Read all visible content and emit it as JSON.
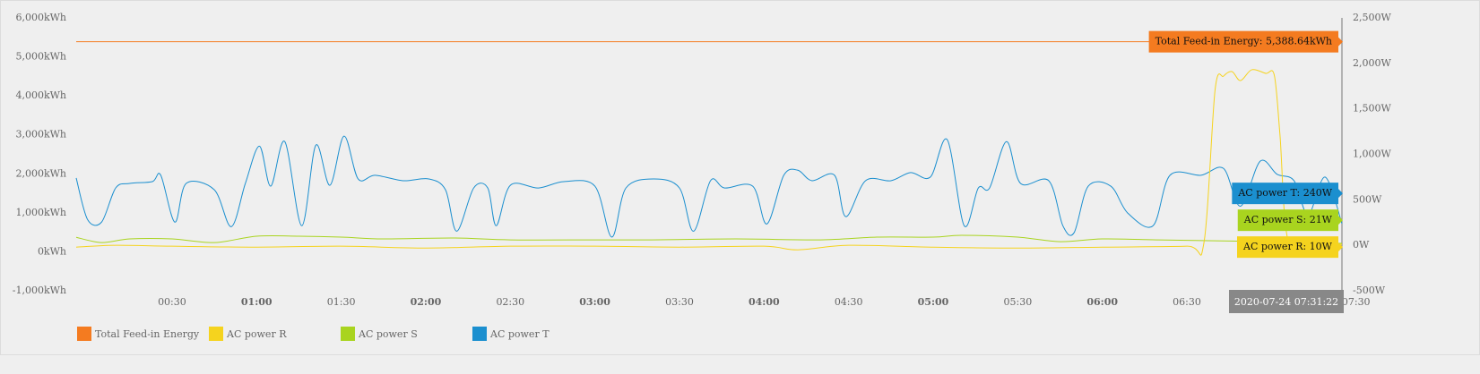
{
  "chart_data": {
    "type": "line",
    "xlim": [
      -4,
      445
    ],
    "xticks": [
      {
        "value": 30,
        "label": "00:30"
      },
      {
        "value": 60,
        "label": "01:00"
      },
      {
        "value": 90,
        "label": "01:30"
      },
      {
        "value": 120,
        "label": "02:00"
      },
      {
        "value": 150,
        "label": "02:30"
      },
      {
        "value": 180,
        "label": "03:00"
      },
      {
        "value": 210,
        "label": "03:30"
      },
      {
        "value": 240,
        "label": "04:00"
      },
      {
        "value": 270,
        "label": "04:30"
      },
      {
        "value": 300,
        "label": "05:00"
      },
      {
        "value": 330,
        "label": "05:30"
      },
      {
        "value": 360,
        "label": "06:00"
      },
      {
        "value": 390,
        "label": "06:30"
      },
      {
        "value": 450,
        "label": "07:30"
      }
    ],
    "ylim": [
      -1000,
      6000
    ],
    "yticks": [
      {
        "value": -1000,
        "label": "-1,000kWh"
      },
      {
        "value": 0,
        "label": "0kWh"
      },
      {
        "value": 1000,
        "label": "1,000kWh"
      },
      {
        "value": 2000,
        "label": "2,000kWh"
      },
      {
        "value": 3000,
        "label": "3,000kWh"
      },
      {
        "value": 4000,
        "label": "4,000kWh"
      },
      {
        "value": 5000,
        "label": "5,000kWh"
      },
      {
        "value": 6000,
        "label": "6,000kWh"
      }
    ],
    "y2lim": [
      -500,
      2500
    ],
    "y2ticks": [
      {
        "value": -500,
        "label": "-500W"
      },
      {
        "value": 0,
        "label": "0W"
      },
      {
        "value": 500,
        "label": "500W"
      },
      {
        "value": 1000,
        "label": "1,000W"
      },
      {
        "value": 1500,
        "label": "1,500W"
      },
      {
        "value": 2000,
        "label": "2,000W"
      },
      {
        "value": 2500,
        "label": "2,500W"
      }
    ],
    "cursor": {
      "x": 445,
      "label": "2020-07-24 07:31:22"
    },
    "series": [
      {
        "name": "Total Feed-in Energy",
        "color": "#f47b20",
        "x": [
          -4,
          445
        ],
        "values": [
          5388.64,
          5388.64
        ],
        "value_labels": [
          null,
          "Total Feed-in Energy: 5,388.64kWh"
        ]
      },
      {
        "name": "AC power R",
        "color": "#f5d31e",
        "axis": "y2",
        "x": [
          -4,
          10,
          30,
          60,
          90,
          120,
          150,
          180,
          210,
          240,
          252,
          270,
          300,
          330,
          360,
          390,
          396,
          400,
          403,
          406,
          409,
          413,
          418,
          421,
          423,
          426,
          435,
          445
        ],
        "values": [
          -20,
          0,
          -10,
          -20,
          -10,
          -30,
          -10,
          -10,
          -20,
          -10,
          -50,
          0,
          -20,
          -30,
          -20,
          -10,
          20,
          1710,
          1860,
          1910,
          1810,
          1930,
          1890,
          1870,
          1220,
          40,
          20,
          10
        ],
        "value_labels": [
          null,
          null,
          null,
          null,
          null,
          null,
          null,
          null,
          null,
          null,
          null,
          null,
          null,
          null,
          null,
          null,
          null,
          null,
          null,
          null,
          null,
          null,
          null,
          null,
          null,
          null,
          null,
          "AC power R: 10W"
        ]
      },
      {
        "name": "AC power S",
        "color": "#a9d41f",
        "axis": "y2",
        "x": [
          -4,
          5,
          15,
          30,
          45,
          60,
          75,
          90,
          105,
          130,
          150,
          180,
          200,
          230,
          260,
          280,
          300,
          310,
          330,
          345,
          360,
          380,
          400,
          420,
          445
        ],
        "values": [
          88,
          30,
          70,
          70,
          30,
          100,
          100,
          90,
          70,
          80,
          60,
          60,
          60,
          70,
          60,
          90,
          90,
          110,
          90,
          40,
          70,
          60,
          50,
          40,
          21
        ],
        "value_labels": [
          null,
          null,
          null,
          null,
          null,
          null,
          null,
          null,
          null,
          null,
          null,
          null,
          null,
          null,
          null,
          null,
          null,
          null,
          null,
          null,
          null,
          null,
          null,
          null,
          "AC power S: 21W"
        ]
      },
      {
        "name": "AC power T",
        "color": "#1b8fcf",
        "axis": "y2",
        "x": [
          -4,
          0,
          5,
          10,
          15,
          23,
          26,
          31,
          35,
          45,
          51,
          56,
          61,
          65,
          70,
          76,
          81,
          86,
          91,
          96,
          102,
          112,
          121,
          127,
          131,
          137,
          142,
          145,
          150,
          160,
          169,
          180,
          186,
          191,
          201,
          210,
          215,
          221,
          226,
          236,
          241,
          247,
          252,
          257,
          265,
          269,
          276,
          285,
          292,
          299,
          305,
          311,
          316,
          320,
          326,
          331,
          341,
          346,
          350,
          355,
          363,
          369,
          378,
          384,
          395,
          403,
          409,
          416,
          422,
          428,
          433,
          439,
          445
        ],
        "values": [
          740,
          285,
          255,
          630,
          680,
          700,
          770,
          255,
          680,
          610,
          205,
          680,
          1090,
          650,
          1140,
          215,
          1100,
          660,
          1200,
          730,
          770,
          710,
          730,
          610,
          155,
          630,
          630,
          215,
          660,
          630,
          700,
          650,
          90,
          630,
          730,
          630,
          155,
          710,
          630,
          650,
          235,
          770,
          825,
          710,
          770,
          315,
          710,
          710,
          800,
          750,
          1160,
          215,
          630,
          630,
          1140,
          680,
          710,
          215,
          140,
          650,
          650,
          355,
          215,
          770,
          770,
          845,
          430,
          925,
          780,
          710,
          335,
          750,
          240
        ],
        "value_labels": [
          null,
          null,
          null,
          null,
          null,
          null,
          null,
          null,
          null,
          null,
          null,
          null,
          null,
          null,
          null,
          null,
          null,
          null,
          null,
          null,
          null,
          null,
          null,
          null,
          null,
          null,
          null,
          null,
          null,
          null,
          null,
          null,
          null,
          null,
          null,
          null,
          null,
          null,
          null,
          null,
          null,
          null,
          null,
          null,
          null,
          null,
          null,
          null,
          null,
          null,
          null,
          null,
          null,
          null,
          null,
          null,
          null,
          null,
          null,
          null,
          null,
          null,
          null,
          null,
          null,
          null,
          null,
          null,
          null,
          null,
          null,
          null,
          "AC power T: 240W"
        ]
      }
    ]
  }
}
